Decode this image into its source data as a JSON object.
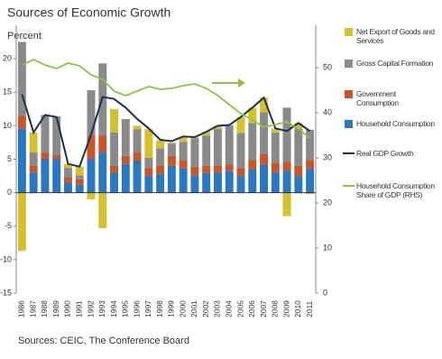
{
  "chart_data": {
    "type": "bar",
    "stacked": true,
    "title": "Sources of Economic Growth",
    "y_label": "Percent",
    "source": "Sources: CEIC, The Conference Board",
    "categories": [
      "1986",
      "1987",
      "1988",
      "1989",
      "1990",
      "1991",
      "1992",
      "1993",
      "1994",
      "1995",
      "1996",
      "1997",
      "1998",
      "1999",
      "2000",
      "2001",
      "2002",
      "2003",
      "2004",
      "2005",
      "2006",
      "2007",
      "2008",
      "2009",
      "2010",
      "2011"
    ],
    "series": [
      {
        "name": "Net Export of Goods and Services",
        "type": "bar",
        "color": "#d6c02c",
        "values": [
          -8.7,
          3,
          0,
          0,
          0.6,
          1.3,
          -1,
          -5.3,
          3.5,
          0,
          0.5,
          4.3,
          1.2,
          0.2,
          0.8,
          0.2,
          0.6,
          0.5,
          0.1,
          2.4,
          2.3,
          2.2,
          0.6,
          -3.5,
          0.8,
          -0.2
        ]
      },
      {
        "name": "Gross Capital Formation",
        "type": "bar",
        "color": "#8a8a8a",
        "values": [
          11,
          2,
          5.6,
          5.8,
          1.4,
          0.6,
          6.8,
          10.8,
          5,
          5.5,
          3.5,
          1.5,
          2.5,
          1.8,
          2.8,
          4.2,
          4.5,
          5.5,
          5.8,
          5.2,
          5.5,
          6.2,
          4.5,
          8.1,
          5.6,
          4.5
        ]
      },
      {
        "name": "Government Consumption",
        "type": "bar",
        "color": "#c8562a",
        "values": [
          1.9,
          1,
          1,
          0.6,
          0.8,
          0.8,
          3.5,
          2.5,
          1,
          1.2,
          1.2,
          1.2,
          1.3,
          1.5,
          1.2,
          1.3,
          1,
          1,
          1,
          1.2,
          1.4,
          1.6,
          1.5,
          1.3,
          1.5,
          1.3
        ]
      },
      {
        "name": "Household Consumption",
        "type": "bar",
        "color": "#2a78c2",
        "values": [
          9.6,
          3,
          5,
          5,
          1.5,
          1.2,
          5,
          6,
          3,
          4.3,
          4.8,
          2.5,
          2.8,
          4,
          3.6,
          2.6,
          3,
          3,
          3.2,
          2.5,
          3.5,
          4.2,
          3,
          3.3,
          2.5,
          3.6
        ]
      },
      {
        "name": "Real GDP Growth",
        "type": "line",
        "color": "#1c2f55",
        "values": [
          14.7,
          9,
          11.6,
          11.3,
          4.3,
          3.9,
          8.7,
          14.3,
          14,
          12.7,
          11,
          9.6,
          7.9,
          7.7,
          8.4,
          8.3,
          9.1,
          10,
          10.1,
          11.3,
          12.7,
          14.2,
          9.6,
          9.2,
          10.4,
          9.2
        ]
      },
      {
        "name": "Household Consumption Share of GDP (RHS)",
        "type": "line",
        "axis": "y2",
        "color": "#8cc63f",
        "values": [
          50.6,
          51.8,
          50.6,
          49.8,
          51,
          50.4,
          48.4,
          47.4,
          44.8,
          43.8,
          44.8,
          45.8,
          45.2,
          45.4,
          46,
          46.4,
          45.4,
          43.8,
          41.8,
          39.8,
          38.4,
          36.8,
          37.4,
          38,
          36.4,
          34.4
        ]
      }
    ],
    "ylim": [
      -15,
      25
    ],
    "yticks": [
      -15,
      -10,
      -5,
      0,
      5,
      10,
      15,
      20
    ],
    "y2lim": [
      0,
      59.4
    ],
    "y2ticks": [
      0,
      10,
      20,
      30,
      40,
      50
    ]
  }
}
